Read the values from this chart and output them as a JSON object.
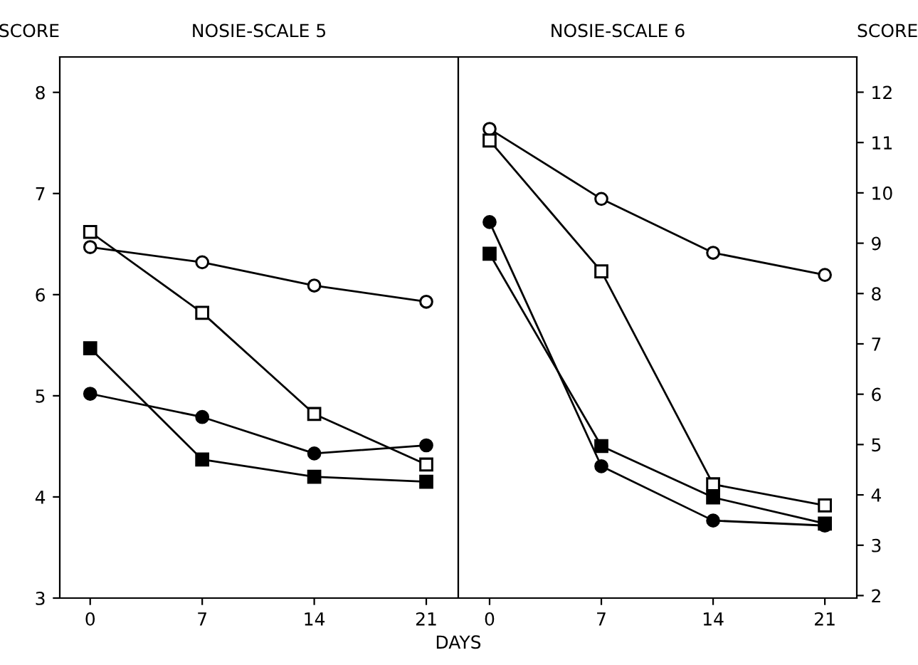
{
  "chart_data": [
    {
      "type": "line",
      "title": "NOSIE-SCALE 5",
      "ylabel": "SCORE",
      "xlabel": "DAYS",
      "x": [
        0,
        7,
        14,
        21
      ],
      "xlim": [
        -1.9,
        23.0
      ],
      "xticks": [
        0,
        7,
        14,
        21
      ],
      "ylim": [
        3,
        8.35
      ],
      "yticks": [
        3,
        4,
        5,
        6,
        7,
        8
      ],
      "grid": false,
      "legend": false,
      "series": [
        {
          "color": "#ffffff",
          "marker": "square",
          "values": [
            6.62,
            5.82,
            4.82,
            4.32
          ]
        },
        {
          "color": "#ffffff",
          "marker": "circle",
          "values": [
            6.47,
            6.32,
            6.09,
            5.93
          ]
        },
        {
          "color": "#000000",
          "marker": "square",
          "values": [
            5.47,
            4.37,
            4.2,
            4.15
          ]
        },
        {
          "color": "#000000",
          "marker": "circle",
          "values": [
            5.02,
            4.79,
            4.43,
            4.51
          ]
        }
      ]
    },
    {
      "type": "line",
      "title": "NOSIE-SCALE 6",
      "ylabel": "SCORE",
      "x": [
        0,
        7,
        14,
        21
      ],
      "xlim": [
        -1.96,
        23.0
      ],
      "xticks": [
        0,
        7,
        14,
        21
      ],
      "ylim": [
        1.95,
        12.7
      ],
      "yticks": [
        2,
        3,
        4,
        5,
        6,
        7,
        8,
        9,
        10,
        11,
        12
      ],
      "grid": false,
      "legend": false,
      "series": [
        {
          "color": "#ffffff",
          "marker": "circle",
          "values": [
            11.27,
            9.88,
            8.81,
            8.37
          ]
        },
        {
          "color": "#ffffff",
          "marker": "square",
          "values": [
            11.04,
            8.44,
            4.21,
            3.79
          ]
        },
        {
          "color": "#000000",
          "marker": "circle",
          "values": [
            9.42,
            4.57,
            3.49,
            3.39
          ]
        },
        {
          "color": "#000000",
          "marker": "square",
          "values": [
            8.79,
            4.97,
            3.95,
            3.43
          ]
        }
      ]
    }
  ]
}
